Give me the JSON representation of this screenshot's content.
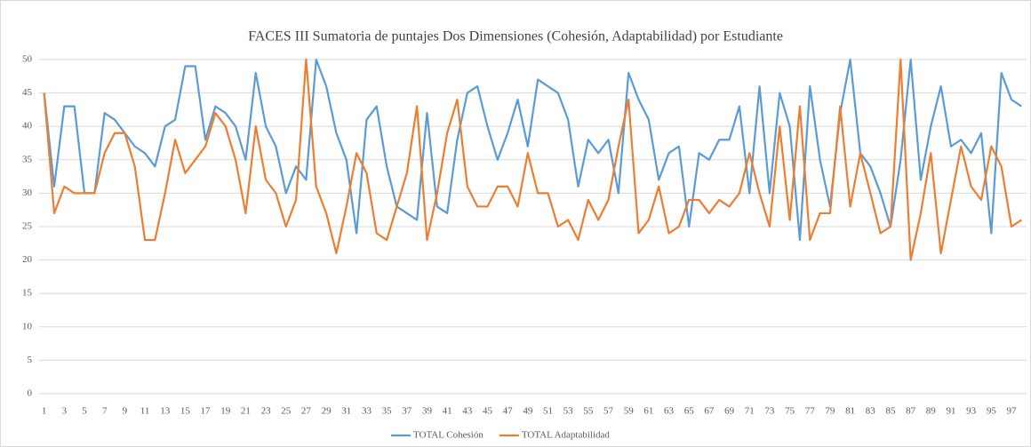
{
  "chart_data": {
    "type": "line",
    "title": "FACES III Sumatoria de puntajes Dos Dimensiones (Cohesión, Adaptabilidad) por Estudiante",
    "categories": [
      "1",
      null,
      "3",
      null,
      "5",
      null,
      "7",
      null,
      "9",
      null,
      "11",
      null,
      "13",
      null,
      "15",
      null,
      "17",
      null,
      "19",
      null,
      "21",
      null,
      "23",
      null,
      "25",
      null,
      "27",
      null,
      "29",
      null,
      "31",
      null,
      "33",
      null,
      "35",
      null,
      "37",
      null,
      "39",
      null,
      "41",
      null,
      "43",
      null,
      "45",
      null,
      "47",
      null,
      "49",
      null,
      "51",
      null,
      "53",
      null,
      "55",
      null,
      "57",
      null,
      "59",
      null,
      "61",
      null,
      "63",
      null,
      "65",
      null,
      "67",
      null,
      "69",
      null,
      "71",
      null,
      "73",
      null,
      "75",
      null,
      "77",
      null,
      "79",
      null,
      "81",
      null,
      "83",
      null,
      "85",
      null,
      "87",
      null,
      "89",
      null,
      "91",
      null,
      "93",
      null,
      "95",
      null,
      "97",
      null
    ],
    "series": [
      {
        "name": "TOTAL Cohesión",
        "color": "#5b9bd5",
        "values": [
          45,
          31,
          43,
          43,
          30,
          30,
          42,
          41,
          39,
          37,
          36,
          34,
          40,
          41,
          49,
          49,
          38,
          43,
          42,
          40,
          35,
          48,
          40,
          37,
          30,
          34,
          32,
          50,
          46,
          39,
          35,
          24,
          41,
          43,
          34,
          28,
          27,
          26,
          42,
          28,
          27,
          38,
          45,
          46,
          40,
          35,
          39,
          44,
          37,
          47,
          46,
          45,
          41,
          31,
          38,
          36,
          38,
          30,
          48,
          44,
          41,
          32,
          36,
          37,
          25,
          36,
          35,
          38,
          38,
          43,
          30,
          46,
          30,
          45,
          40,
          23,
          46,
          35,
          28,
          42,
          50,
          36,
          34,
          30,
          25,
          35,
          50,
          32,
          40,
          46,
          37,
          38,
          36,
          39,
          24,
          48,
          44,
          43
        ]
      },
      {
        "name": "TOTAL Adaptabilidad",
        "color": "#ed7d31",
        "values": [
          45,
          27,
          31,
          30,
          30,
          30,
          36,
          39,
          39,
          34,
          23,
          23,
          30,
          38,
          33,
          35,
          37,
          42,
          40,
          35,
          27,
          40,
          32,
          30,
          25,
          29,
          50,
          31,
          27,
          21,
          28,
          36,
          33,
          24,
          23,
          28,
          33,
          43,
          23,
          30,
          39,
          44,
          31,
          28,
          28,
          31,
          31,
          28,
          36,
          30,
          30,
          25,
          26,
          23,
          29,
          26,
          29,
          37,
          44,
          24,
          26,
          31,
          24,
          25,
          29,
          29,
          27,
          29,
          28,
          30,
          36,
          30,
          25,
          40,
          26,
          43,
          23,
          27,
          27,
          43,
          28,
          36,
          30,
          24,
          25,
          50,
          20,
          27,
          36,
          21,
          29,
          37,
          31,
          29,
          37,
          34,
          25,
          26
        ]
      }
    ],
    "ylim": [
      0,
      50
    ],
    "yticks": [
      0,
      5,
      10,
      15,
      20,
      25,
      30,
      35,
      40,
      45,
      50
    ],
    "grid": true,
    "legend": "bottom"
  }
}
